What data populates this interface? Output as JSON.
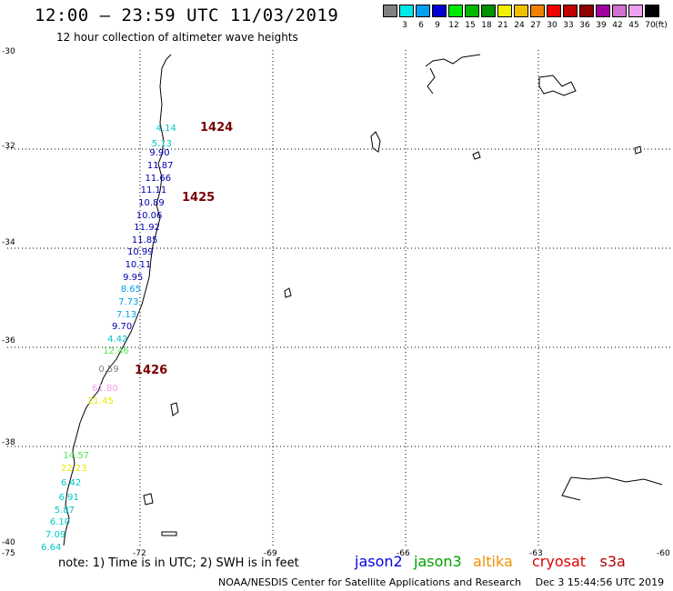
{
  "header": {
    "title": "12:00 – 23:59 UTC 11/03/2019",
    "subtitle": "12 hour collection of altimeter wave heights"
  },
  "legend": {
    "unit": "(ft)",
    "items": [
      {
        "label": "3",
        "color": "#808080"
      },
      {
        "label": "6",
        "color": "#00e8e8"
      },
      {
        "label": "9",
        "color": "#00a0f0"
      },
      {
        "label": "12",
        "color": "#0000d0"
      },
      {
        "label": "15",
        "color": "#00e800"
      },
      {
        "label": "18",
        "color": "#00b800"
      },
      {
        "label": "21",
        "color": "#009000"
      },
      {
        "label": "24",
        "color": "#f0f000"
      },
      {
        "label": "27",
        "color": "#f0c000"
      },
      {
        "label": "30",
        "color": "#f08000"
      },
      {
        "label": "33",
        "color": "#f00000"
      },
      {
        "label": "36",
        "color": "#c00000"
      },
      {
        "label": "39",
        "color": "#900000"
      },
      {
        "label": "42",
        "color": "#a000a0"
      },
      {
        "label": "45",
        "color": "#d070d0"
      },
      {
        "label": "70",
        "color": "#f0a0f0"
      },
      {
        "label": "",
        "color": "#000000"
      }
    ]
  },
  "axes": {
    "lat_ticks": [
      "-30",
      "-32",
      "-34",
      "-36",
      "-38",
      "-40"
    ],
    "lon_ticks": [
      "-75",
      "-72",
      "-69",
      "-66",
      "-63",
      "-60"
    ]
  },
  "passes": [
    "1424",
    "1425",
    "1426"
  ],
  "observations": [
    {
      "value": "4.14",
      "color": "#00c8c8",
      "lat": -31.6,
      "lon": -71.35
    },
    {
      "value": "5.13",
      "color": "#00c8c8",
      "lat": -31.9,
      "lon": -71.45
    },
    {
      "value": "9.90",
      "color": "#0000b0",
      "lat": -32.1,
      "lon": -71.5
    },
    {
      "value": "11.87",
      "color": "#0000b0",
      "lat": -32.35,
      "lon": -71.55
    },
    {
      "value": "11.66",
      "color": "#0000b0",
      "lat": -32.6,
      "lon": -71.6
    },
    {
      "value": "11.11",
      "color": "#0000b0",
      "lat": -32.85,
      "lon": -71.7
    },
    {
      "value": "10.89",
      "color": "#0000b0",
      "lat": -33.1,
      "lon": -71.75
    },
    {
      "value": "10.06",
      "color": "#0000b0",
      "lat": -33.35,
      "lon": -71.8
    },
    {
      "value": "11.92",
      "color": "#0000b0",
      "lat": -33.6,
      "lon": -71.85
    },
    {
      "value": "11.85",
      "color": "#0000b0",
      "lat": -33.85,
      "lon": -71.9
    },
    {
      "value": "10.99",
      "color": "#0000b0",
      "lat": -34.1,
      "lon": -72.0
    },
    {
      "value": "10.11",
      "color": "#0000b0",
      "lat": -34.35,
      "lon": -72.05
    },
    {
      "value": "9.95",
      "color": "#0000b0",
      "lat": -34.6,
      "lon": -72.1
    },
    {
      "value": "8.65",
      "color": "#00a0f0",
      "lat": -34.85,
      "lon": -72.15
    },
    {
      "value": "7.73",
      "color": "#00a0f0",
      "lat": -35.1,
      "lon": -72.2
    },
    {
      "value": "7.13",
      "color": "#00a0f0",
      "lat": -35.35,
      "lon": -72.25
    },
    {
      "value": "9.70",
      "color": "#0000b0",
      "lat": -35.6,
      "lon": -72.35
    },
    {
      "value": "4.42",
      "color": "#00c8c8",
      "lat": -35.85,
      "lon": -72.45
    },
    {
      "value": "12.46",
      "color": "#50e850",
      "lat": -36.1,
      "lon": -72.55
    },
    {
      "value": "0.59",
      "color": "#808080",
      "lat": -36.45,
      "lon": -72.65
    },
    {
      "value": "61.80",
      "color": "#f0a0f0",
      "lat": -36.85,
      "lon": -72.8
    },
    {
      "value": "21.45",
      "color": "#e8e800",
      "lat": -37.1,
      "lon": -72.9
    },
    {
      "value": "14.57",
      "color": "#50e850",
      "lat": -38.2,
      "lon": -73.45
    },
    {
      "value": "22.23",
      "color": "#e8e800",
      "lat": -38.45,
      "lon": -73.5
    },
    {
      "value": "6.42",
      "color": "#00c8c8",
      "lat": -38.75,
      "lon": -73.5
    },
    {
      "value": "6.91",
      "color": "#00c8c8",
      "lat": -39.05,
      "lon": -73.55
    },
    {
      "value": "5.87",
      "color": "#00c8c8",
      "lat": -39.3,
      "lon": -73.65
    },
    {
      "value": "6.10",
      "color": "#00c8c8",
      "lat": -39.55,
      "lon": -73.75
    },
    {
      "value": "7.09",
      "color": "#00c8c8",
      "lat": -39.8,
      "lon": -73.85
    },
    {
      "value": "6.64",
      "color": "#00c8c8",
      "lat": -40.05,
      "lon": -73.95
    }
  ],
  "footer": {
    "note": "note: 1) Time is in UTC; 2) SWH is in feet",
    "credit": "NOAA/NESDIS Center for Satellite Applications and Research",
    "timestamp": "Dec  3 15:44:56 UTC 2019"
  },
  "satellites": [
    {
      "name": "jason2",
      "color": "#0000e0"
    },
    {
      "name": "jason3",
      "color": "#00a000"
    },
    {
      "name": "altika",
      "color": "#f09000"
    },
    {
      "name": "cryosat",
      "color": "#e00000"
    },
    {
      "name": "s3a",
      "color": "#b00000"
    }
  ]
}
